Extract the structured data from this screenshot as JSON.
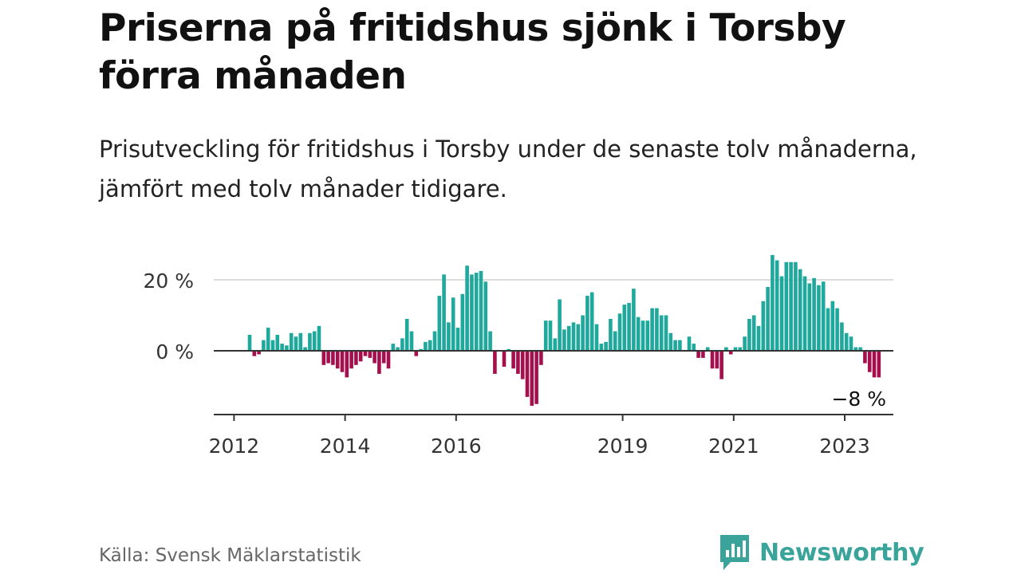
{
  "title": "Priserna på fritidshus sjönk i Torsby förra månaden",
  "subtitle": "Prisutveckling för fritidshus i Torsby under de senaste tolv månaderna, jämfört med tolv månader tidigare.",
  "source": "Källa: Svensk Mäklarstatistik",
  "brand": "Newsworthy",
  "colors": {
    "positive": "#1fa89c",
    "negative": "#a50f4d",
    "brand": "#3aa39a"
  },
  "chart_data": {
    "type": "bar",
    "title": "Priserna på fritidshus sjönk i Torsby förra månaden",
    "subtitle": "Prisutveckling för fritidshus i Torsby under de senaste tolv månaderna, jämfört med tolv månader tidigare.",
    "xlabel": "",
    "ylabel": "",
    "x_start": "2012-03",
    "frequency": "monthly",
    "ylim": [
      -18,
      28
    ],
    "yticks": [
      0,
      20
    ],
    "ytick_labels": [
      "0 %",
      "20 %"
    ],
    "xticks": [
      "2012",
      "2014",
      "2016",
      "2019",
      "2021",
      "2023"
    ],
    "grid": true,
    "last_value_label": "−8 %",
    "values": [
      4.5,
      -1.5,
      -1,
      3,
      6.5,
      3,
      4.5,
      2,
      1.5,
      5,
      4,
      5,
      1,
      5,
      5.5,
      7,
      -4,
      -3.5,
      -4,
      -5,
      -6,
      -7.5,
      -5,
      -4,
      -3,
      -1.5,
      -2,
      -3.5,
      -6.5,
      -3.5,
      -5,
      2,
      1,
      3.5,
      9,
      5.5,
      -1.5,
      0.5,
      2.5,
      3,
      5.5,
      15.5,
      21.5,
      8,
      15,
      6.5,
      16,
      24,
      21.5,
      22,
      22.5,
      19.5,
      5.5,
      -6.5,
      0,
      -4.5,
      0.5,
      -5,
      -6.5,
      -8,
      -13,
      -15.5,
      -15,
      -4,
      8.5,
      8.5,
      3.5,
      14.5,
      6,
      7,
      8,
      7.5,
      10,
      15.5,
      16.5,
      7.5,
      2,
      2.5,
      9,
      5.5,
      10.5,
      13,
      13.5,
      17.5,
      9.5,
      8.5,
      8.5,
      12,
      12,
      10,
      10,
      5,
      3,
      3,
      0,
      4,
      2,
      -2,
      -2,
      1,
      -5,
      -5,
      -8,
      1,
      -1,
      1,
      1,
      4,
      9,
      10,
      7,
      14,
      18,
      27,
      25.5,
      21,
      25,
      25,
      25,
      23,
      21,
      19,
      20.5,
      18.5,
      19.5,
      12,
      14,
      12,
      8,
      5,
      4,
      1,
      1,
      -3.5,
      -6,
      -7.5,
      -7.5
    ]
  }
}
